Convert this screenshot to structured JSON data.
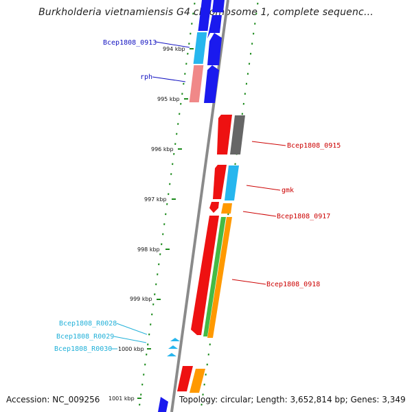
{
  "title": "Burkholderia vietnamiensis G4 chromosome 1, complete sequenc...",
  "accession": "Accession: NC_009256",
  "stats": "Topology: circular; Length: 3,652,814 bp; Genes: 3,349",
  "colors": {
    "backbone": "#8a8a8a",
    "tick": "#1a8a1a",
    "label_blue": "#1010c0",
    "label_red": "#cc0000",
    "label_cyan": "#20b0d8"
  },
  "kbp_labels": [
    "994 kbp",
    "995 kbp",
    "996 kbp",
    "997 kbp",
    "998 kbp",
    "999 kbp",
    "1000 kbp",
    "1001 kbp"
  ],
  "gene_labels": [
    {
      "id": "Bcep1808_0913",
      "text": "Bcep1808_0913",
      "color": "#1010c0"
    },
    {
      "id": "rph",
      "text": "rph",
      "color": "#1010c0"
    },
    {
      "id": "Bcep1808_0915",
      "text": "Bcep1808_0915",
      "color": "#cc0000"
    },
    {
      "id": "gmk",
      "text": "gmk",
      "color": "#cc0000"
    },
    {
      "id": "Bcep1808_0917",
      "text": "Bcep1808_0917",
      "color": "#cc0000"
    },
    {
      "id": "Bcep1808_0918",
      "text": "Bcep1808_0918",
      "color": "#cc0000"
    },
    {
      "id": "Bcep1808_R0028",
      "text": "Bcep1808_R0028",
      "color": "#20b0d8"
    },
    {
      "id": "Bcep1808_R0029",
      "text": "Bcep1808_R0029",
      "color": "#20b0d8"
    },
    {
      "id": "Bcep1808_R0030",
      "text": "Bcep1808_R0030",
      "color": "#20b0d8"
    }
  ]
}
